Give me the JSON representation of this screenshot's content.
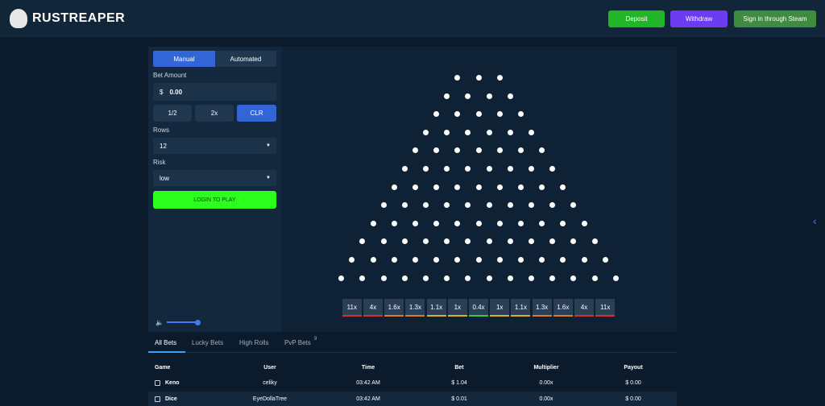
{
  "header": {
    "brand": "RUSTREAPER",
    "deposit": "Deposit",
    "withdraw": "Withdraw",
    "steam": "Sign in through Steam"
  },
  "controls": {
    "modes": [
      "Manual",
      "Automated"
    ],
    "bet_label": "Bet Amount",
    "currency": "$",
    "bet_value": "0.00",
    "bet_buttons": [
      "1/2",
      "2x",
      "CLR"
    ],
    "rows_label": "Rows",
    "rows_value": "12",
    "risk_label": "Risk",
    "risk_value": "low",
    "play": "LOGIN TO PLAY"
  },
  "board": {
    "multipliers": [
      "11x",
      "4x",
      "1.6x",
      "1.3x",
      "1.1x",
      "1x",
      "0.4x",
      "1x",
      "1.1x",
      "1.3x",
      "1.6x",
      "4x",
      "11x"
    ]
  },
  "tabs": {
    "items": [
      "All Bets",
      "Lucky Bets",
      "High Rolls",
      "PvP Bets"
    ],
    "pvp_badge": "9"
  },
  "table": {
    "headers": [
      "Game",
      "User",
      "Time",
      "Bet",
      "Multiplier",
      "Payout"
    ],
    "rows": [
      [
        "Keno",
        "celiky",
        "03:42 AM",
        "$ 1.04",
        "0.00x",
        "$ 0.00"
      ],
      [
        "Dice",
        "EyeDollaTree",
        "03:42 AM",
        "$ 0.01",
        "0.00x",
        "$ 0.00"
      ]
    ]
  }
}
